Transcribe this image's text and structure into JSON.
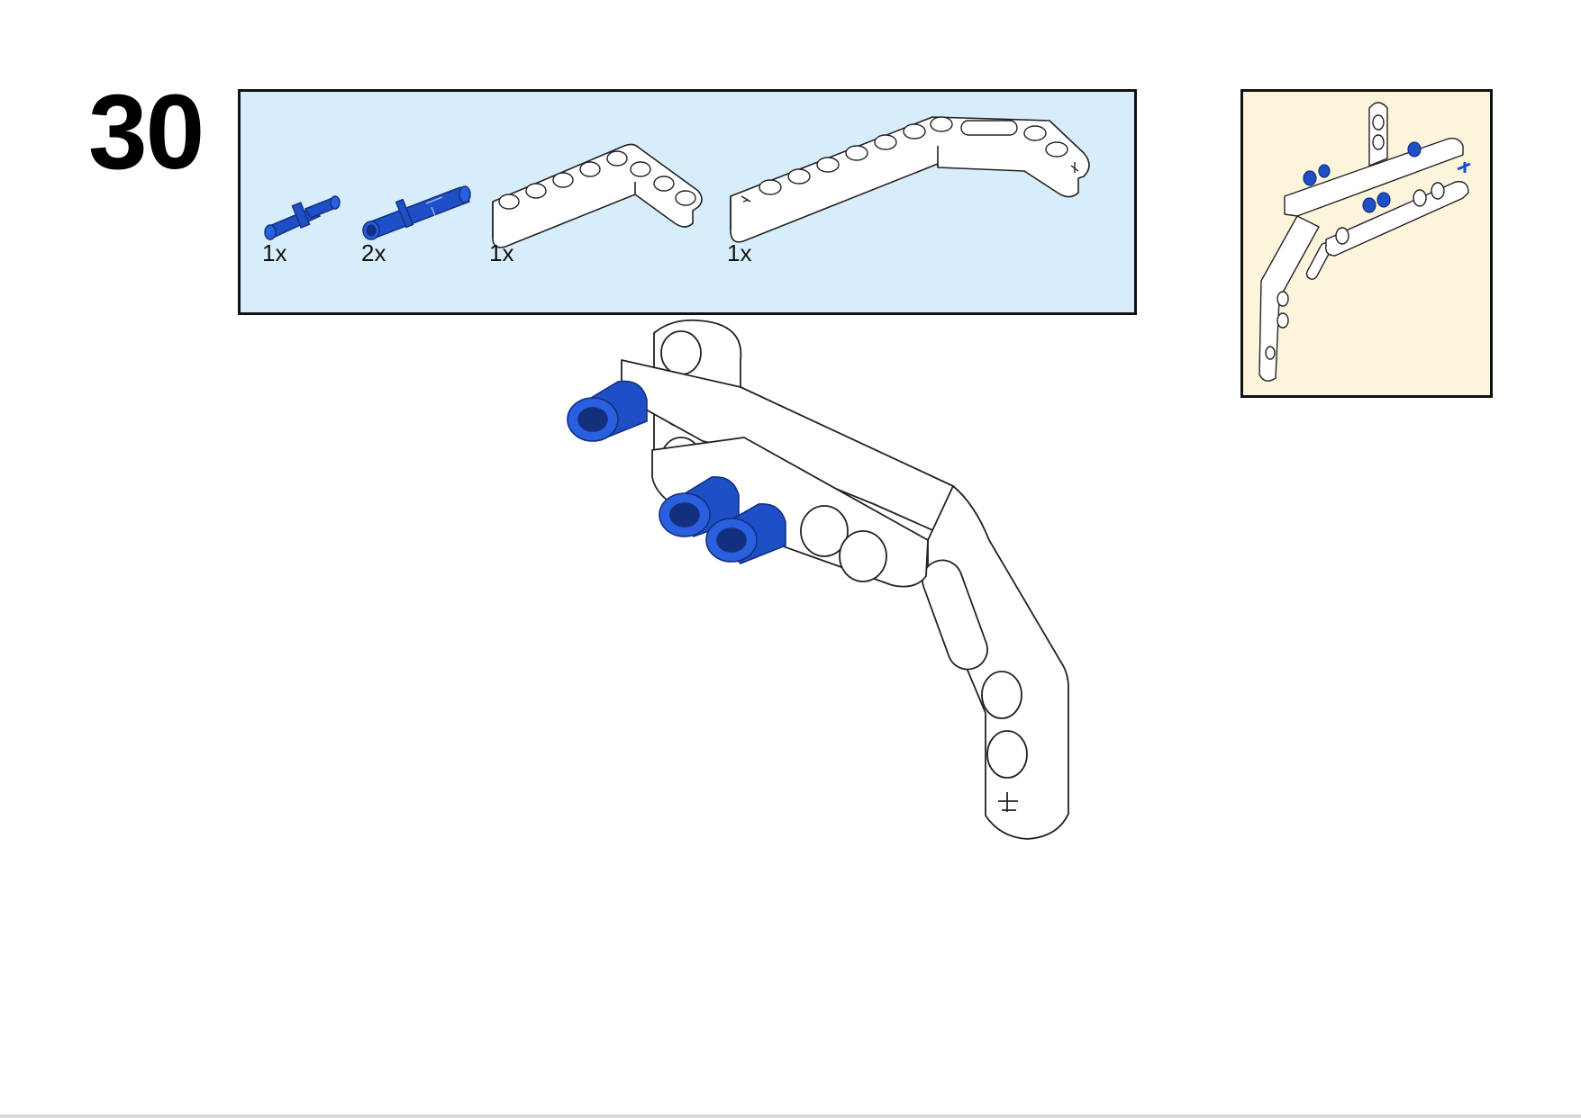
{
  "step": {
    "number": "30"
  },
  "parts_list": {
    "background_color": "#d8edfb",
    "items": [
      {
        "name": "friction-pin",
        "color": "#1f4fc7",
        "quantity": "1x"
      },
      {
        "name": "long-pin",
        "color": "#1f4fc7",
        "quantity": "2x"
      },
      {
        "name": "l-shape-beam",
        "color": "#ffffff",
        "quantity": "1x"
      },
      {
        "name": "bent-beam",
        "color": "#ffffff",
        "quantity": "1x"
      }
    ]
  },
  "submodel_preview": {
    "background_color": "#fdf4dc"
  },
  "colors": {
    "pin_blue": "#1f4fc7",
    "pin_blue_dark": "#12307e",
    "beam_white": "#ffffff",
    "outline": "#222222"
  }
}
